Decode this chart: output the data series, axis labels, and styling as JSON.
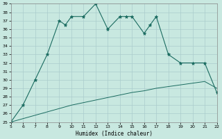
{
  "xlabel": "Humidex (Indice chaleur)",
  "x_main": [
    5,
    6,
    7,
    8,
    9,
    9.5,
    10,
    11,
    12,
    13,
    14,
    14.5,
    15,
    16,
    16.5,
    17,
    18,
    19,
    20,
    21,
    22
  ],
  "y_main": [
    25,
    27,
    30,
    33,
    37,
    36.5,
    37.5,
    37.5,
    39,
    36,
    37.5,
    37.5,
    37.5,
    35.5,
    36.5,
    37.5,
    33,
    32,
    32,
    32,
    28.5
  ],
  "x_line2": [
    5,
    6,
    7,
    8,
    9,
    10,
    11,
    12,
    13,
    14,
    15,
    16,
    17,
    18,
    19,
    20,
    21,
    22
  ],
  "y_line2": [
    25,
    25.4,
    25.8,
    26.2,
    26.6,
    27.0,
    27.3,
    27.6,
    27.9,
    28.2,
    28.5,
    28.7,
    29.0,
    29.2,
    29.4,
    29.6,
    29.8,
    29.0
  ],
  "line_color": "#1a6b60",
  "bg_color": "#c8e8e0",
  "grid_color": "#aacccc",
  "xlim": [
    5,
    22
  ],
  "ylim": [
    25,
    39
  ],
  "xticks": [
    5,
    6,
    7,
    8,
    9,
    10,
    11,
    12,
    13,
    14,
    15,
    16,
    17,
    18,
    19,
    20,
    21,
    22
  ],
  "yticks": [
    25,
    26,
    27,
    28,
    29,
    30,
    31,
    32,
    33,
    34,
    35,
    36,
    37,
    38,
    39
  ]
}
